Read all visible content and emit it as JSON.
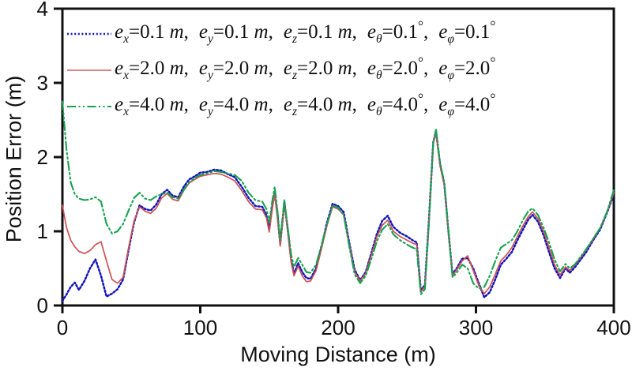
{
  "figure": {
    "background": "#ffffff",
    "frame_color": "#111111"
  },
  "axes": {
    "x": {
      "label": "Moving Distance (m)",
      "min": 0,
      "max": 400,
      "ticks": [
        0,
        100,
        200,
        300,
        400
      ]
    },
    "y": {
      "label": "Position Error (m)",
      "min": 0,
      "max": 4,
      "ticks": [
        0,
        1,
        2,
        3,
        4
      ]
    }
  },
  "legend": {
    "items": [
      {
        "color": "#1414bd",
        "dash": "dotted",
        "params": [
          {
            "sub": "x",
            "value": "0.1",
            "unit": "m"
          },
          {
            "sub": "y",
            "value": "0.1",
            "unit": "m"
          },
          {
            "sub": "z",
            "value": "0.1",
            "unit": "m"
          },
          {
            "sub": "θ",
            "value": "0.1",
            "unit": "°"
          },
          {
            "sub": "φ",
            "value": "0.1",
            "unit": "°"
          }
        ]
      },
      {
        "color": "#d07a7a",
        "dash": "solid",
        "params": [
          {
            "sub": "x",
            "value": "2.0",
            "unit": "m"
          },
          {
            "sub": "y",
            "value": "2.0",
            "unit": "m"
          },
          {
            "sub": "z",
            "value": "2.0",
            "unit": "m"
          },
          {
            "sub": "θ",
            "value": "2.0",
            "unit": "°"
          },
          {
            "sub": "φ",
            "value": "2.0",
            "unit": "°"
          }
        ]
      },
      {
        "color": "#17a24f",
        "dash": "dash-dot-dot",
        "params": [
          {
            "sub": "x",
            "value": "4.0",
            "unit": "m"
          },
          {
            "sub": "y",
            "value": "4.0",
            "unit": "m"
          },
          {
            "sub": "z",
            "value": "4.0",
            "unit": "m"
          },
          {
            "sub": "θ",
            "value": "4.0",
            "unit": "°"
          },
          {
            "sub": "φ",
            "value": "4.0",
            "unit": "°"
          }
        ]
      }
    ]
  },
  "chart_data": {
    "type": "line",
    "title": "",
    "xlabel": "Moving Distance (m)",
    "ylabel": "Position Error (m)",
    "xlim": [
      0,
      400
    ],
    "ylim": [
      0,
      4
    ],
    "grid": false,
    "legend_position": "top-left",
    "x": [
      0,
      3,
      6,
      9,
      12,
      16,
      20,
      24,
      28,
      32,
      36,
      40,
      44,
      48,
      52,
      56,
      60,
      64,
      68,
      72,
      76,
      80,
      84,
      88,
      92,
      96,
      100,
      105,
      110,
      115,
      120,
      125,
      130,
      135,
      140,
      145,
      148,
      150,
      152,
      154,
      156,
      158,
      160,
      161,
      163,
      166,
      168,
      171,
      174,
      177,
      180,
      184,
      188,
      192,
      196,
      200,
      204,
      208,
      212,
      216,
      220,
      224,
      228,
      232,
      236,
      240,
      245,
      250,
      254,
      257,
      260,
      263,
      266,
      269,
      271,
      274,
      277,
      280,
      283,
      286,
      290,
      294,
      298,
      302,
      306,
      310,
      314,
      318,
      322,
      326,
      330,
      334,
      338,
      341,
      345,
      349,
      353,
      357,
      361,
      365,
      368,
      372,
      376,
      380,
      385,
      390,
      395,
      400
    ],
    "series": [
      {
        "name": "ex=0.1 m, ey=0.1 m, ez=0.1 m, eθ=0.1°, eφ=0.1°",
        "color": "#1414bd",
        "line_style": "dotted",
        "values": [
          0.06,
          0.15,
          0.25,
          0.31,
          0.21,
          0.33,
          0.5,
          0.62,
          0.4,
          0.12,
          0.16,
          0.22,
          0.35,
          0.75,
          1.12,
          1.35,
          1.3,
          1.28,
          1.36,
          1.5,
          1.56,
          1.48,
          1.46,
          1.6,
          1.7,
          1.74,
          1.79,
          1.8,
          1.83,
          1.82,
          1.77,
          1.73,
          1.6,
          1.45,
          1.34,
          1.33,
          1.22,
          1.02,
          1.3,
          1.54,
          1.22,
          0.83,
          1.2,
          1.4,
          1.1,
          0.6,
          0.43,
          0.57,
          0.45,
          0.37,
          0.36,
          0.5,
          0.8,
          1.12,
          1.37,
          1.34,
          1.26,
          0.85,
          0.48,
          0.34,
          0.45,
          0.7,
          0.96,
          1.14,
          1.21,
          1.06,
          0.98,
          0.93,
          0.88,
          0.85,
          0.2,
          0.28,
          1.2,
          2.2,
          2.35,
          1.9,
          1.64,
          1.0,
          0.42,
          0.5,
          0.63,
          0.64,
          0.5,
          0.3,
          0.11,
          0.18,
          0.35,
          0.55,
          0.63,
          0.72,
          0.88,
          1.02,
          1.16,
          1.22,
          1.13,
          0.95,
          0.72,
          0.5,
          0.37,
          0.5,
          0.44,
          0.52,
          0.62,
          0.72,
          0.88,
          1.02,
          1.25,
          1.5
        ]
      },
      {
        "name": "ex=2.0 m, ey=2.0 m, ez=2.0 m, eθ=2.0°, eφ=2.0°",
        "color": "#cc5252",
        "line_style": "solid",
        "values": [
          1.35,
          1.05,
          0.88,
          0.79,
          0.73,
          0.7,
          0.74,
          0.82,
          0.86,
          0.6,
          0.35,
          0.3,
          0.38,
          0.78,
          1.14,
          1.33,
          1.27,
          1.24,
          1.31,
          1.45,
          1.51,
          1.43,
          1.41,
          1.55,
          1.65,
          1.7,
          1.74,
          1.76,
          1.78,
          1.77,
          1.73,
          1.68,
          1.55,
          1.4,
          1.3,
          1.29,
          1.18,
          0.99,
          1.27,
          1.5,
          1.18,
          0.8,
          1.17,
          1.37,
          1.07,
          0.57,
          0.4,
          0.53,
          0.4,
          0.32,
          0.33,
          0.47,
          0.77,
          1.08,
          1.33,
          1.3,
          1.22,
          0.82,
          0.45,
          0.33,
          0.43,
          0.67,
          0.92,
          1.08,
          1.15,
          1.0,
          0.93,
          0.88,
          0.84,
          0.82,
          0.18,
          0.26,
          1.18,
          2.18,
          2.33,
          1.88,
          1.62,
          0.98,
          0.4,
          0.48,
          0.6,
          0.67,
          0.47,
          0.27,
          0.16,
          0.25,
          0.42,
          0.6,
          0.68,
          0.78,
          0.93,
          1.07,
          1.2,
          1.26,
          1.17,
          1.0,
          0.78,
          0.55,
          0.41,
          0.52,
          0.47,
          0.55,
          0.65,
          0.75,
          0.9,
          1.04,
          1.26,
          1.52
        ]
      },
      {
        "name": "ex=4.0 m, ey=4.0 m, ez=4.0 m, eθ=4.0°, eφ=4.0°",
        "color": "#17a24f",
        "line_style": "dash-dot-dot",
        "values": [
          2.75,
          2.1,
          1.66,
          1.5,
          1.44,
          1.42,
          1.43,
          1.46,
          1.4,
          1.1,
          0.97,
          1.0,
          1.1,
          1.28,
          1.45,
          1.52,
          1.44,
          1.42,
          1.47,
          1.5,
          1.52,
          1.46,
          1.44,
          1.56,
          1.66,
          1.72,
          1.76,
          1.78,
          1.81,
          1.8,
          1.78,
          1.76,
          1.68,
          1.52,
          1.42,
          1.4,
          1.3,
          1.12,
          1.38,
          1.6,
          1.28,
          0.88,
          1.24,
          1.42,
          1.12,
          0.68,
          0.52,
          0.64,
          0.55,
          0.45,
          0.44,
          0.55,
          0.82,
          1.1,
          1.35,
          1.32,
          1.22,
          0.8,
          0.42,
          0.3,
          0.4,
          0.62,
          0.86,
          1.02,
          1.1,
          0.96,
          0.88,
          0.82,
          0.78,
          0.76,
          0.15,
          0.22,
          1.15,
          2.2,
          2.37,
          1.92,
          1.66,
          1.02,
          0.38,
          0.44,
          0.55,
          0.5,
          0.3,
          0.23,
          0.25,
          0.4,
          0.6,
          0.78,
          0.83,
          0.88,
          1.0,
          1.15,
          1.27,
          1.31,
          1.22,
          1.05,
          0.85,
          0.62,
          0.46,
          0.56,
          0.5,
          0.56,
          0.66,
          0.76,
          0.9,
          1.04,
          1.26,
          1.56
        ]
      }
    ]
  }
}
